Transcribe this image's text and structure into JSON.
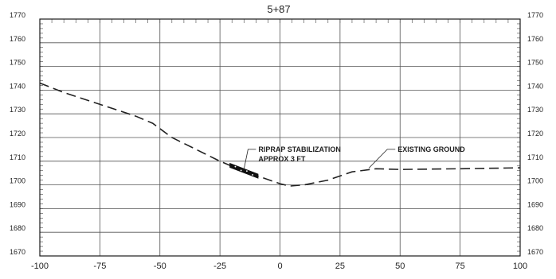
{
  "chart_data": {
    "type": "line",
    "title": "5+87",
    "xlabel": "",
    "ylabel": "",
    "xlim": [
      -100,
      100
    ],
    "ylim": [
      1670,
      1770
    ],
    "x_ticks": [
      -100,
      -75,
      -50,
      -25,
      0,
      25,
      50,
      75,
      100
    ],
    "x_tick_labels": [
      "-100",
      "-75",
      "-50",
      "-25",
      "0",
      "25",
      "50",
      "75",
      "100"
    ],
    "y_ticks": [
      1670,
      1680,
      1690,
      1700,
      1710,
      1720,
      1730,
      1740,
      1750,
      1760,
      1770
    ],
    "y_tick_labels": [
      "1670",
      "1680",
      "1690",
      "1700",
      "1710",
      "1720",
      "1730",
      "1740",
      "1750",
      "1760",
      "1770"
    ],
    "grid": true,
    "series": [
      {
        "name": "EXISTING GROUND",
        "x": [
          -100,
          -90,
          -75,
          -60,
          -53,
          -45,
          -35,
          -25,
          -18,
          -10,
          0,
          4,
          10,
          20,
          30,
          40,
          50,
          75,
          100
        ],
        "y": [
          1743,
          1739,
          1734,
          1729,
          1726,
          1720,
          1715,
          1710,
          1707,
          1704,
          1700.5,
          1699.5,
          1700,
          1702,
          1705.5,
          1706.8,
          1706.5,
          1706.8,
          1707.2
        ]
      }
    ],
    "annotations": [
      {
        "text": "RIPRAP STABILIZATION",
        "x": -9,
        "y": 1714
      },
      {
        "text": "APPROX 3 FT",
        "x": -9,
        "y": 1710
      },
      {
        "text": "EXISTING GROUND",
        "x": 49,
        "y": 1714
      }
    ],
    "riprap_band": {
      "x_start": -21,
      "x_end": -9
    }
  }
}
